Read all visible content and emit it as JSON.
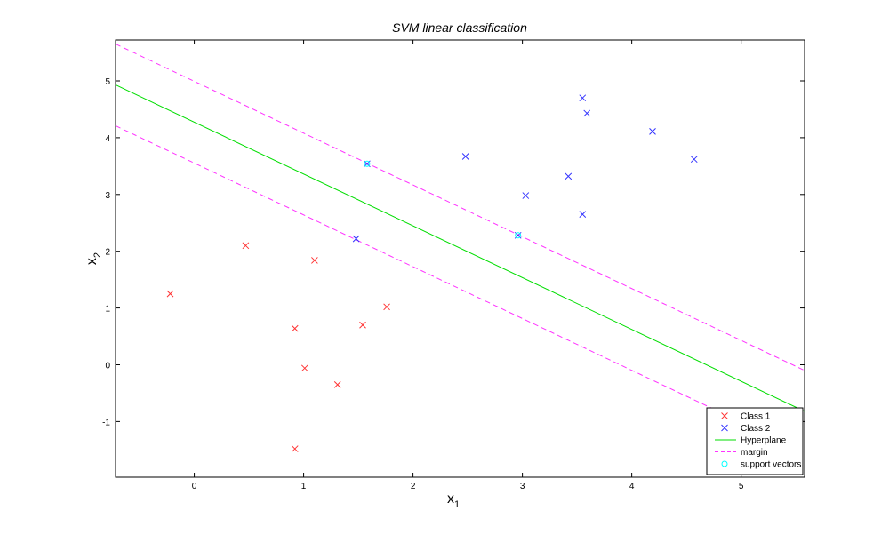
{
  "chart_data": {
    "type": "scatter",
    "title": "SVM linear classification",
    "xlabel": "x",
    "xlabel_sub": "1",
    "ylabel": "x",
    "ylabel_sub": "2",
    "xlim": [
      -0.72,
      5.58
    ],
    "ylim": [
      -1.98,
      5.72
    ],
    "xticks": [
      0,
      1,
      2,
      3,
      4,
      5
    ],
    "yticks": [
      -1,
      0,
      1,
      2,
      3,
      4,
      5
    ],
    "xtick_labels": [
      "0",
      "1",
      "2",
      "3",
      "4",
      "5"
    ],
    "ytick_labels": [
      "-1",
      "0",
      "1",
      "2",
      "3",
      "4",
      "5"
    ],
    "grid": false,
    "legend_position": "bottom-right",
    "series": [
      {
        "name": "Class 1",
        "kind": "scatter",
        "marker": "x",
        "color": "#ff3333",
        "points": [
          [
            -0.22,
            1.25
          ],
          [
            0.47,
            2.1
          ],
          [
            1.1,
            1.84
          ],
          [
            0.92,
            0.64
          ],
          [
            1.01,
            -0.06
          ],
          [
            1.54,
            0.7
          ],
          [
            1.76,
            1.02
          ],
          [
            1.31,
            -0.35
          ],
          [
            0.92,
            -1.48
          ]
        ]
      },
      {
        "name": "Class 2",
        "kind": "scatter",
        "marker": "x",
        "color": "#3333ff",
        "points": [
          [
            1.58,
            3.54
          ],
          [
            1.48,
            2.22
          ],
          [
            2.48,
            3.67
          ],
          [
            2.96,
            2.28
          ],
          [
            3.03,
            2.98
          ],
          [
            3.42,
            3.32
          ],
          [
            3.55,
            2.65
          ],
          [
            3.55,
            4.7
          ],
          [
            3.59,
            4.43
          ],
          [
            4.19,
            4.11
          ],
          [
            4.57,
            3.62
          ]
        ]
      },
      {
        "name": "Hyperplane",
        "kind": "line",
        "style": "solid",
        "color": "#00dd00",
        "x": [
          -0.72,
          5.58
        ],
        "y": [
          4.93,
          -0.82
        ]
      },
      {
        "name": "margin",
        "kind": "line",
        "style": "dashed",
        "color": "#ff33ff",
        "x": [
          -0.72,
          5.58
        ],
        "y": [
          5.65,
          -0.1
        ]
      },
      {
        "name": "margin-lower",
        "kind": "line",
        "style": "dashed",
        "color": "#ff33ff",
        "x": [
          -0.72,
          5.58
        ],
        "y": [
          4.21,
          -1.54
        ]
      },
      {
        "name": "support vectors",
        "kind": "scatter",
        "marker": "o",
        "color": "#00ffff",
        "points": [
          [
            1.58,
            3.54
          ],
          [
            2.96,
            2.28
          ]
        ]
      }
    ],
    "legend": [
      {
        "label": "Class 1",
        "marker": "x",
        "color": "#ff3333"
      },
      {
        "label": "Class 2",
        "marker": "x",
        "color": "#3333ff"
      },
      {
        "label": "Hyperplane",
        "marker": "line",
        "color": "#00dd00"
      },
      {
        "label": "margin",
        "marker": "dashed",
        "color": "#ff33ff"
      },
      {
        "label": "support vectors",
        "marker": "o",
        "color": "#00ffff"
      }
    ]
  }
}
